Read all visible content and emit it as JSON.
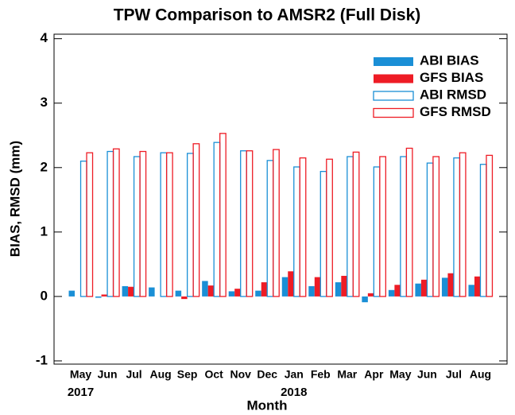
{
  "chart_data": {
    "type": "bar",
    "title": "TPW Comparison to AMSR2  (Full Disk)",
    "x_label": "Month",
    "y_label": "BIAS, RMSD (mm)",
    "categories": [
      "May",
      "Jun",
      "Jul",
      "Aug",
      "Sep",
      "Oct",
      "Nov",
      "Dec",
      "Jan",
      "Feb",
      "Mar",
      "Apr",
      "May",
      "Jun",
      "Jul",
      "Aug"
    ],
    "year_labels": [
      "2017",
      null,
      null,
      null,
      null,
      null,
      null,
      null,
      "2018",
      null,
      null,
      null,
      null,
      null,
      null,
      null
    ],
    "series": [
      {
        "name": "ABI BIAS",
        "color": "#1a8fd6",
        "style": "filled",
        "values": [
          0.09,
          -0.02,
          0.16,
          0.14,
          0.09,
          0.24,
          0.08,
          0.09,
          0.3,
          0.16,
          0.22,
          -0.09,
          0.1,
          0.2,
          0.29,
          0.18
        ]
      },
      {
        "name": "GFS BIAS",
        "color": "#ee1c25",
        "style": "filled",
        "values": [
          0,
          0.03,
          0.15,
          0,
          -0.04,
          0.17,
          0.12,
          0.22,
          0.39,
          0.3,
          0.32,
          0.05,
          0.18,
          0.26,
          0.36,
          0.31
        ]
      },
      {
        "name": "ABI RMSD",
        "color": "#1a8fd6",
        "style": "outline",
        "values": [
          2.1,
          2.25,
          2.17,
          2.23,
          2.22,
          2.39,
          2.26,
          2.11,
          2.01,
          1.94,
          2.17,
          2.01,
          2.17,
          2.07,
          2.15,
          2.05
        ]
      },
      {
        "name": "GFS RMSD",
        "color": "#ee1c25",
        "style": "outline",
        "values": [
          2.23,
          2.29,
          2.25,
          2.23,
          2.37,
          2.53,
          2.26,
          2.28,
          2.15,
          2.13,
          2.24,
          2.17,
          2.3,
          2.17,
          2.23,
          2.19
        ]
      }
    ],
    "ylim": [
      -1.05,
      4.07
    ],
    "yticks": [
      -1,
      0,
      1,
      2,
      3,
      4
    ],
    "legend": "upper-right"
  }
}
